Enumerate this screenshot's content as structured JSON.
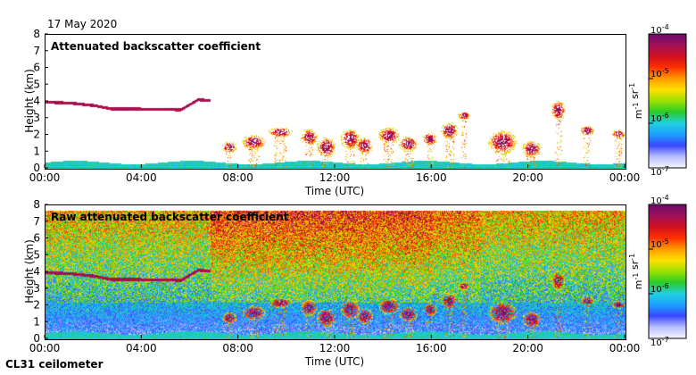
{
  "header": {
    "date": "17 May 2020"
  },
  "footer": {
    "instrument": "CL31 ceilometer"
  },
  "colors": {
    "scale": [
      "#f4f4ff",
      "#b8c0ff",
      "#3a46ff",
      "#1aa0ff",
      "#22d0e0",
      "#28cc28",
      "#9be000",
      "#ffe000",
      "#ff9a00",
      "#ff3000",
      "#d01020",
      "#a0105a",
      "#6a0a6a"
    ]
  },
  "chart_data": [
    {
      "type": "heatmap",
      "title": "Attenuated backscatter coefficient",
      "xlabel": "Time (UTC)",
      "ylabel": "Height (km)",
      "xticks": [
        "00:00",
        "04:00",
        "08:00",
        "12:00",
        "16:00",
        "20:00",
        "00:00"
      ],
      "yticks": [
        "0",
        "1",
        "2",
        "3",
        "4",
        "5",
        "6",
        "7",
        "8"
      ],
      "xlim_hours": [
        0,
        24
      ],
      "ylim_km": [
        0,
        8
      ],
      "colorbar": {
        "ticks": [
          "10-7",
          "10-6",
          "10-5",
          "10-4"
        ],
        "label": "m-1 sr-1",
        "range_log10": [
          -7,
          -4
        ]
      },
      "features": {
        "boundary_layer_top_km": 0.4,
        "aerosol_layer": [
          [
            0,
            4.0
          ],
          [
            1,
            3.95
          ],
          [
            2,
            3.8
          ],
          [
            2.7,
            3.6
          ],
          [
            3.5,
            3.6
          ],
          [
            5.6,
            3.55
          ],
          [
            6.3,
            4.15
          ],
          [
            6.8,
            4.1
          ]
        ],
        "cloud_patches": [
          {
            "t": 7.6,
            "h": 1.3,
            "hw": 0.3,
            "hh": 0.35
          },
          {
            "t": 8.6,
            "h": 1.6,
            "hw": 0.5,
            "hh": 0.45
          },
          {
            "t": 9.7,
            "h": 2.2,
            "hw": 0.5,
            "hh": 0.3
          },
          {
            "t": 10.9,
            "h": 1.9,
            "hw": 0.35,
            "hh": 0.5
          },
          {
            "t": 11.6,
            "h": 1.3,
            "hw": 0.4,
            "hh": 0.6
          },
          {
            "t": 12.6,
            "h": 1.8,
            "hw": 0.4,
            "hh": 0.6
          },
          {
            "t": 13.2,
            "h": 1.4,
            "hw": 0.35,
            "hh": 0.5
          },
          {
            "t": 14.2,
            "h": 2.0,
            "hw": 0.45,
            "hh": 0.5
          },
          {
            "t": 15.0,
            "h": 1.5,
            "hw": 0.4,
            "hh": 0.45
          },
          {
            "t": 15.9,
            "h": 1.8,
            "hw": 0.3,
            "hh": 0.4
          },
          {
            "t": 16.7,
            "h": 2.3,
            "hw": 0.35,
            "hh": 0.5
          },
          {
            "t": 17.3,
            "h": 3.2,
            "hw": 0.25,
            "hh": 0.25
          },
          {
            "t": 18.9,
            "h": 1.6,
            "hw": 0.6,
            "hh": 0.7
          },
          {
            "t": 20.1,
            "h": 1.2,
            "hw": 0.4,
            "hh": 0.5
          },
          {
            "t": 21.2,
            "h": 3.5,
            "hw": 0.3,
            "hh": 0.6
          },
          {
            "t": 22.4,
            "h": 2.3,
            "hw": 0.3,
            "hh": 0.3
          },
          {
            "t": 23.7,
            "h": 2.1,
            "hw": 0.3,
            "hh": 0.25
          }
        ]
      }
    },
    {
      "type": "heatmap",
      "title": "Raw attenuated backscatter coefficient",
      "xlabel": "Time (UTC)",
      "ylabel": "Height (km)",
      "xticks": [
        "00:00",
        "04:00",
        "08:00",
        "12:00",
        "16:00",
        "20:00",
        "00:00"
      ],
      "yticks": [
        "0",
        "1",
        "2",
        "3",
        "4",
        "5",
        "6",
        "7",
        "8"
      ],
      "xlim_hours": [
        0,
        24
      ],
      "ylim_km": [
        0,
        8
      ],
      "colorbar": {
        "ticks": [
          "10-7",
          "10-6",
          "10-5",
          "10-4"
        ],
        "label": "m-1 sr-1",
        "range_log10": [
          -7,
          -4
        ]
      }
    }
  ]
}
